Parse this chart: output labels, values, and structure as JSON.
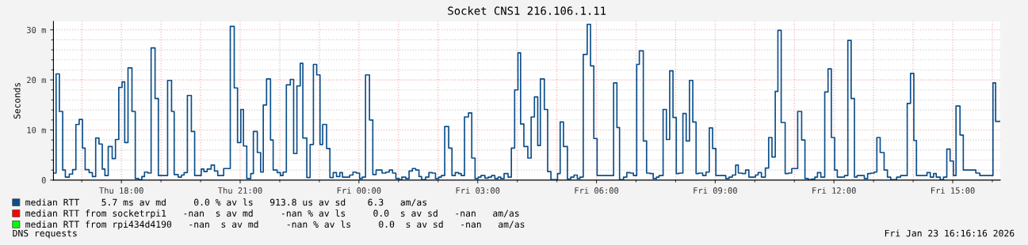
{
  "chart_data": {
    "type": "step",
    "title": "Socket CNS1 216.106.1.11",
    "ylabel": "Seconds",
    "xlim": [
      "2026-01-22T16:17",
      "2026-01-23T16:12"
    ],
    "ylim": [
      0,
      31.7
    ],
    "xticks": [
      {
        "value": "2026-01-22T18:00",
        "label": "Thu 18:00"
      },
      {
        "value": "2026-01-22T21:00",
        "label": "Thu 21:00"
      },
      {
        "value": "2026-01-23T00:00",
        "label": "Fri 00:00"
      },
      {
        "value": "2026-01-23T03:00",
        "label": "Fri 03:00"
      },
      {
        "value": "2026-01-23T06:00",
        "label": "Fri 06:00"
      },
      {
        "value": "2026-01-23T09:00",
        "label": "Fri 09:00"
      },
      {
        "value": "2026-01-23T12:00",
        "label": "Fri 12:00"
      },
      {
        "value": "2026-01-23T15:00",
        "label": "Fri 15:00"
      }
    ],
    "yticks": [
      0,
      {
        "value": 10,
        "label": "10 m"
      },
      {
        "value": 20,
        "label": "20 m"
      },
      {
        "value": 30,
        "label": "30 m"
      }
    ],
    "grid": true,
    "legend": "bottom",
    "series": [
      {
        "name": "median RTT    5.7 ms av md     0.0 % av ls   913.8 us av sd    6.3   am/as",
        "color": "#0b4e8a",
        "x": [
          "2026-01-22T16:17",
          "2026-01-22T16:21",
          "2026-01-22T16:26",
          "2026-01-22T16:31",
          "2026-01-22T16:35",
          "2026-01-22T16:41",
          "2026-01-22T16:46",
          "2026-01-22T16:51",
          "2026-01-22T16:56",
          "2026-01-22T17:01",
          "2026-01-22T17:05",
          "2026-01-22T17:11",
          "2026-01-22T17:16",
          "2026-01-22T17:21",
          "2026-01-22T17:26",
          "2026-01-22T17:31",
          "2026-01-22T17:35",
          "2026-01-22T17:40",
          "2026-01-22T17:46",
          "2026-01-22T17:51",
          "2026-01-22T17:56",
          "2026-01-22T18:01",
          "2026-01-22T18:05",
          "2026-01-22T18:10",
          "2026-01-22T18:16",
          "2026-01-22T18:21",
          "2026-01-22T18:26",
          "2026-01-22T18:31",
          "2026-01-22T18:35",
          "2026-01-22T18:40",
          "2026-01-22T18:45",
          "2026-01-22T18:51",
          "2026-01-22T18:56",
          "2026-01-22T19:10",
          "2026-01-22T19:16",
          "2026-01-22T19:20",
          "2026-01-22T19:26",
          "2026-01-22T19:31",
          "2026-01-22T19:35",
          "2026-01-22T19:40",
          "2026-01-22T19:46",
          "2026-01-22T19:51",
          "2026-01-22T20:01",
          "2026-01-22T20:05",
          "2026-01-22T20:10",
          "2026-01-22T20:16",
          "2026-01-22T20:21",
          "2026-01-22T20:26",
          "2026-01-22T20:35",
          "2026-01-22T20:45",
          "2026-01-22T20:51",
          "2026-01-22T20:56",
          "2026-01-22T21:01",
          "2026-01-22T21:05",
          "2026-01-22T21:10",
          "2026-01-22T21:16",
          "2026-01-22T21:20",
          "2026-01-22T21:26",
          "2026-01-22T21:31",
          "2026-01-22T21:35",
          "2026-01-22T21:40",
          "2026-01-22T21:46",
          "2026-01-22T21:50",
          "2026-01-22T21:56",
          "2026-01-22T22:01",
          "2026-01-22T22:05",
          "2026-01-22T22:10",
          "2026-01-22T22:16",
          "2026-01-22T22:21",
          "2026-01-22T22:26",
          "2026-01-22T22:31",
          "2026-01-22T22:35",
          "2026-01-22T22:41",
          "2026-01-22T22:46",
          "2026-01-22T22:51",
          "2026-01-22T22:56",
          "2026-01-22T23:01",
          "2026-01-22T23:05",
          "2026-01-22T23:11",
          "2026-01-22T23:16",
          "2026-01-22T23:21",
          "2026-01-22T23:26",
          "2026-01-22T23:31",
          "2026-01-22T23:35",
          "2026-01-22T23:46",
          "2026-01-22T23:51",
          "2026-01-22T23:56",
          "2026-01-23T00:01",
          "2026-01-23T00:05",
          "2026-01-23T00:10",
          "2026-01-23T00:16",
          "2026-01-23T00:21",
          "2026-01-23T00:26",
          "2026-01-23T00:35",
          "2026-01-23T00:41",
          "2026-01-23T00:46",
          "2026-01-23T00:51",
          "2026-01-23T00:56",
          "2026-01-23T01:01",
          "2026-01-23T01:05",
          "2026-01-23T01:11",
          "2026-01-23T01:16",
          "2026-01-23T01:21",
          "2026-01-23T01:26",
          "2026-01-23T01:31",
          "2026-01-23T01:35",
          "2026-01-23T01:41",
          "2026-01-23T01:46",
          "2026-01-23T01:51",
          "2026-01-23T01:56",
          "2026-01-23T02:01",
          "2026-01-23T02:05",
          "2026-01-23T02:10",
          "2026-01-23T02:16",
          "2026-01-23T02:21",
          "2026-01-23T02:26",
          "2026-01-23T02:31",
          "2026-01-23T02:35",
          "2026-01-23T02:40",
          "2026-01-23T02:46",
          "2026-01-23T02:51",
          "2026-01-23T02:56",
          "2026-01-23T03:01",
          "2026-01-23T03:05",
          "2026-01-23T03:11",
          "2026-01-23T03:16",
          "2026-01-23T03:21",
          "2026-01-23T03:26",
          "2026-01-23T03:31",
          "2026-01-23T03:35",
          "2026-01-23T03:40",
          "2026-01-23T03:46",
          "2026-01-23T03:51",
          "2026-01-23T03:56",
          "2026-01-23T04:01",
          "2026-01-23T04:05",
          "2026-01-23T04:10",
          "2026-01-23T04:16",
          "2026-01-23T04:21",
          "2026-01-23T04:26",
          "2026-01-23T04:31",
          "2026-01-23T04:35",
          "2026-01-23T04:41",
          "2026-01-23T04:46",
          "2026-01-23T04:51",
          "2026-01-23T05:01",
          "2026-01-23T05:05",
          "2026-01-23T05:10",
          "2026-01-23T05:16",
          "2026-01-23T05:21",
          "2026-01-23T05:26",
          "2026-01-23T05:31",
          "2026-01-23T05:35",
          "2026-01-23T05:40",
          "2026-01-23T05:46",
          "2026-01-23T05:51",
          "2026-01-23T05:56",
          "2026-01-23T06:01",
          "2026-01-23T06:26",
          "2026-01-23T06:31",
          "2026-01-23T06:35",
          "2026-01-23T06:41",
          "2026-01-23T06:46",
          "2026-01-23T06:51",
          "2026-01-23T06:56",
          "2026-01-23T07:01",
          "2026-01-23T07:05",
          "2026-01-23T07:11",
          "2026-01-23T07:16",
          "2026-01-23T07:21",
          "2026-01-23T07:26",
          "2026-01-23T07:31",
          "2026-01-23T07:35",
          "2026-01-23T07:41",
          "2026-01-23T07:46",
          "2026-01-23T07:51",
          "2026-01-23T07:56",
          "2026-01-23T08:01",
          "2026-01-23T08:05",
          "2026-01-23T08:11",
          "2026-01-23T08:16",
          "2026-01-23T08:21",
          "2026-01-23T08:26",
          "2026-01-23T08:31",
          "2026-01-23T08:35",
          "2026-01-23T08:41",
          "2026-01-23T08:46",
          "2026-01-23T08:51",
          "2026-01-23T08:56",
          "2026-01-23T09:01",
          "2026-01-23T09:16",
          "2026-01-23T09:21",
          "2026-01-23T09:26",
          "2026-01-23T09:31",
          "2026-01-23T09:35",
          "2026-01-23T09:41",
          "2026-01-23T09:46",
          "2026-01-23T09:51",
          "2026-01-23T10:01",
          "2026-01-23T10:05",
          "2026-01-23T10:10",
          "2026-01-23T10:16",
          "2026-01-23T10:21",
          "2026-01-23T10:26",
          "2026-01-23T10:31",
          "2026-01-23T10:35",
          "2026-01-23T10:40",
          "2026-01-23T10:46",
          "2026-01-23T10:51",
          "2026-01-23T10:56",
          "2026-01-23T11:05",
          "2026-01-23T11:11",
          "2026-01-23T11:16",
          "2026-01-23T11:21",
          "2026-01-23T11:26",
          "2026-01-23T11:31",
          "2026-01-23T11:35",
          "2026-01-23T11:40",
          "2026-01-23T11:46",
          "2026-01-23T11:51",
          "2026-01-23T11:56",
          "2026-01-23T12:01",
          "2026-01-23T12:05",
          "2026-01-23T12:16",
          "2026-01-23T12:21",
          "2026-01-23T12:26",
          "2026-01-23T12:31",
          "2026-01-23T12:35",
          "2026-01-23T12:46",
          "2026-01-23T12:51",
          "2026-01-23T12:56",
          "2026-01-23T13:01",
          "2026-01-23T13:05",
          "2026-01-23T13:10",
          "2026-01-23T13:16",
          "2026-01-23T13:21",
          "2026-01-23T13:26",
          "2026-01-23T13:35",
          "2026-01-23T13:41",
          "2026-01-23T13:51",
          "2026-01-23T13:56",
          "2026-01-23T14:01",
          "2026-01-23T14:05",
          "2026-01-23T14:21",
          "2026-01-23T14:26",
          "2026-01-23T14:31",
          "2026-01-23T14:35",
          "2026-01-23T14:41",
          "2026-01-23T14:46",
          "2026-01-23T14:51",
          "2026-01-23T14:56",
          "2026-01-23T15:01",
          "2026-01-23T15:05",
          "2026-01-23T15:11",
          "2026-01-23T15:16",
          "2026-01-23T15:35",
          "2026-01-23T15:41",
          "2026-01-23T16:01",
          "2026-01-23T16:05",
          "2026-01-23T16:11"
        ],
        "values": [
          1.4,
          21.2,
          13.7,
          2.0,
          0.6,
          1.2,
          2.1,
          11.1,
          12.1,
          6.4,
          2.1,
          1.5,
          0.7,
          8.4,
          7.2,
          2.2,
          0.9,
          6.7,
          4.3,
          8.1,
          18.5,
          19.6,
          7.5,
          22.4,
          13.7,
          0.3,
          0.1,
          0.7,
          1.6,
          1.4,
          26.4,
          16.3,
          0.9,
          19.9,
          13.7,
          1.1,
          0.6,
          1.0,
          1.5,
          16.9,
          9.7,
          0.9,
          2.2,
          1.7,
          2.2,
          3.0,
          1.8,
          0.9,
          2.3,
          30.7,
          18.4,
          7.5,
          14.1,
          6.8,
          0.3,
          1.3,
          9.7,
          5.5,
          1.6,
          15.0,
          20.2,
          8.0,
          2.0,
          1.5,
          0.9,
          1.6,
          19.0,
          20.1,
          5.3,
          18.8,
          23.3,
          8.4,
          0.5,
          7.1,
          23.1,
          21.0,
          7.1,
          11.1,
          6.3,
          0.5,
          1.5,
          0.7,
          1.5,
          0.6,
          1.0,
          1.6,
          1.4,
          0.3,
          0.6,
          21.0,
          12.0,
          1.1,
          2.0,
          1.4,
          1.6,
          2.0,
          1.4,
          0.3,
          0.1,
          0.6,
          0.3,
          1.8,
          2.3,
          2.0,
          0.7,
          0.1,
          0.6,
          1.5,
          1.4,
          0.3,
          0.6,
          0.9,
          10.7,
          6.4,
          0.9,
          1.5,
          1.3,
          0.9,
          12.6,
          13.4,
          4.4,
          0.3,
          0.6,
          0.9,
          0.4,
          0.6,
          0.9,
          0.3,
          0.6,
          0.3,
          1.3,
          0.6,
          6.4,
          18.0,
          25.4,
          11.2,
          6.7,
          4.4,
          12.6,
          16.6,
          6.9,
          20.2,
          14.1,
          1.7,
          0.1,
          1.3,
          11.6,
          6.7,
          0.2,
          0.6,
          1.0,
          0.3,
          0.6,
          25.1,
          31.1,
          22.8,
          8.3,
          0.9,
          19.4,
          10.5,
          0.1,
          0.6,
          1.5,
          1.4,
          0.9,
          23.1,
          25.8,
          7.8,
          1.4,
          1.3,
          0.3,
          0.6,
          0.9,
          14.1,
          8.1,
          21.8,
          12.5,
          1.3,
          1.4,
          13.3,
          7.8,
          19.9,
          11.6,
          1.3,
          1.4,
          0.9,
          1.6,
          10.4,
          6.3,
          0.9,
          0.3,
          0.6,
          1.0,
          3.0,
          1.4,
          1.3,
          2.0,
          0.6,
          1.0,
          1.5,
          0.6,
          2.4,
          8.5,
          4.6,
          17.7,
          29.9,
          11.5,
          1.3,
          1.4,
          2.3,
          13.7,
          8.0,
          0.3,
          0.1,
          0.2,
          0.6,
          1.5,
          0.6,
          17.6,
          22.2,
          8.5,
          2.0,
          0.6,
          0.9,
          27.9,
          16.3,
          0.6,
          0.9,
          0.3,
          1.3,
          1.4,
          1.6,
          8.5,
          5.5,
          2.0,
          0.6,
          0.1,
          0.6,
          0.9,
          15.3,
          21.3,
          7.9,
          0.9,
          1.5,
          0.6,
          1.3,
          0.6,
          0.1,
          0.6,
          6.2,
          3.8,
          0.9,
          14.8,
          9.0,
          2.0,
          1.4,
          0.9,
          19.4,
          11.7,
          11.7
        ]
      },
      {
        "name": "median RTT from socketrpi1   -nan  s av md     -nan % av ls     0.0  s av sd   -nan   am/as",
        "color": "#ff0000"
      },
      {
        "name": "median RTT from rpi434d4190   -nan  s av md     -nan % av ls     0.0  s av sd   -nan   am/as",
        "color": "#00ff00"
      }
    ],
    "annotations": [
      "DNS requests",
      "Fri Jan 23 16:16:16 2026"
    ]
  }
}
